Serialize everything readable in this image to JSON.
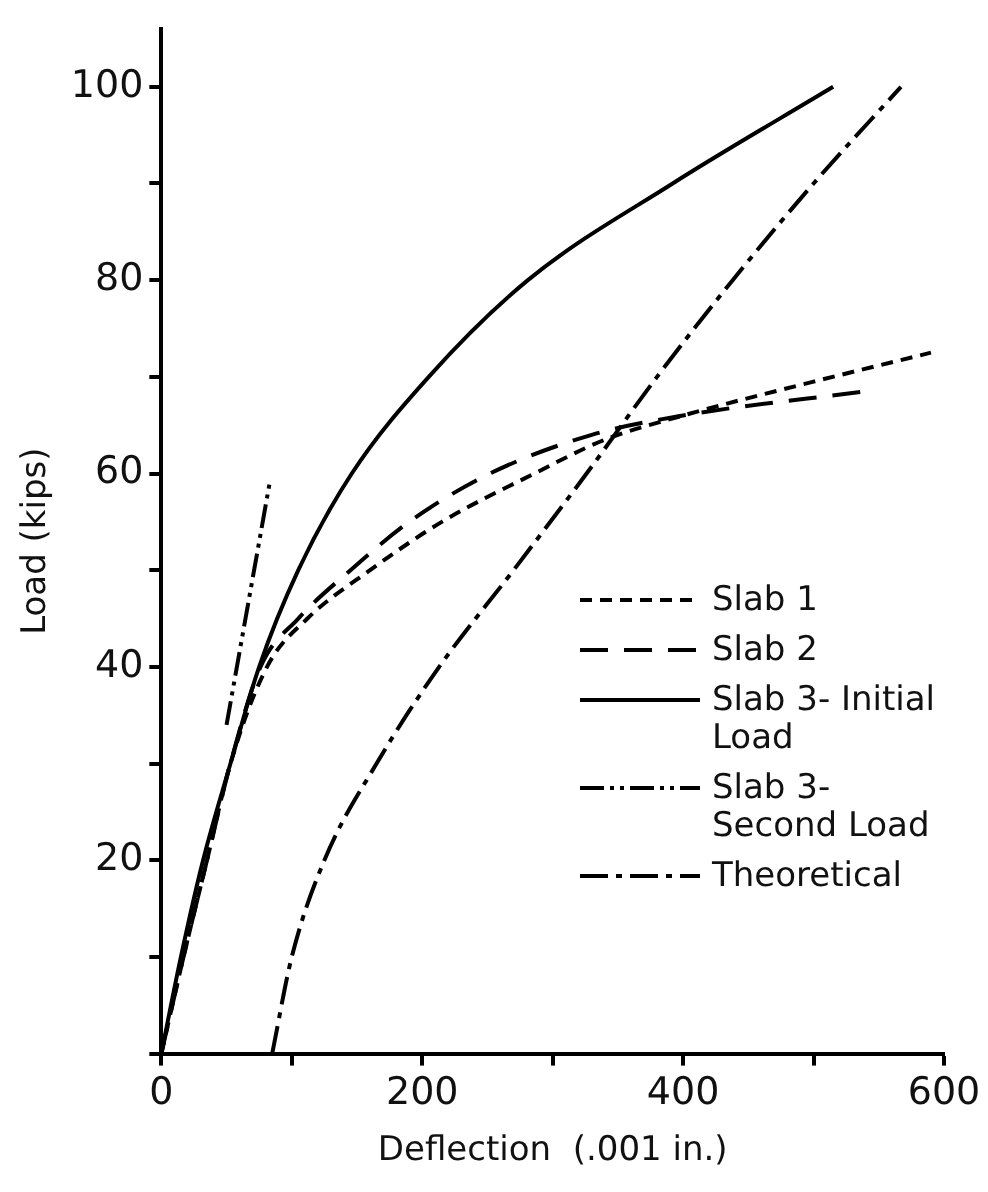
{
  "chart_data": {
    "type": "line",
    "xlabel": "Deflection  (.001 in.)",
    "ylabel": "Load (kips)",
    "xlim": [
      0,
      600
    ],
    "ylim": [
      0,
      106
    ],
    "xticks": [
      0,
      {
        "value": 100,
        "label": null
      },
      200,
      {
        "value": 300,
        "label": null
      },
      400,
      {
        "value": 500,
        "label": null
      },
      600
    ],
    "yticks": [
      {
        "value": 0,
        "label": null
      },
      {
        "value": 10,
        "label": null
      },
      20,
      {
        "value": 30,
        "label": null
      },
      40,
      {
        "value": 50,
        "label": null
      },
      60,
      {
        "value": 70,
        "label": null
      },
      80,
      {
        "value": 90,
        "label": null
      },
      100
    ],
    "grid": false,
    "legend": "right",
    "marker": "none",
    "series": [
      {
        "name": "Slab 1",
        "color": "#000000",
        "line_style": "dashed",
        "x": [
          0,
          17,
          35,
          53,
          81,
          112,
          160,
          215,
          286,
          340,
          400,
          500,
          590
        ],
        "values": [
          0,
          10,
          20,
          30,
          40,
          45,
          50,
          55,
          60,
          63.5,
          66,
          69.5,
          72.5
        ]
      },
      {
        "name": "Slab 2",
        "color": "#000000",
        "line_style": "longdash",
        "x": [
          0,
          17,
          35,
          53,
          76,
          105,
          145,
          190,
          252,
          330,
          400,
          540
        ],
        "values": [
          0,
          10,
          20,
          30,
          40,
          45,
          50,
          55,
          60,
          64,
          66,
          68.5
        ]
      },
      {
        "name": "Slab 3- Initial Load",
        "color": "#000000",
        "line_style": "solid",
        "x": [
          0,
          15,
          32,
          53,
          75,
          105,
          146,
          205,
          281,
          392,
          515
        ],
        "values": [
          0,
          10,
          20,
          30,
          40,
          50,
          60,
          70,
          80,
          90,
          100
        ]
      },
      {
        "name": "Slab 3- Second Load",
        "color": "#000000",
        "line_style": "dashdotdot",
        "x": [
          50,
          83
        ],
        "values": [
          34,
          59
        ]
      },
      {
        "name": "Theoretical",
        "color": "#000000",
        "line_style": "dashdot",
        "x": [
          85,
          100,
          125,
          165,
          213,
          270,
          326,
          380,
          438,
          500,
          567
        ],
        "values": [
          0,
          10,
          20,
          30,
          40,
          50,
          60,
          70,
          80,
          90,
          100
        ]
      }
    ]
  }
}
